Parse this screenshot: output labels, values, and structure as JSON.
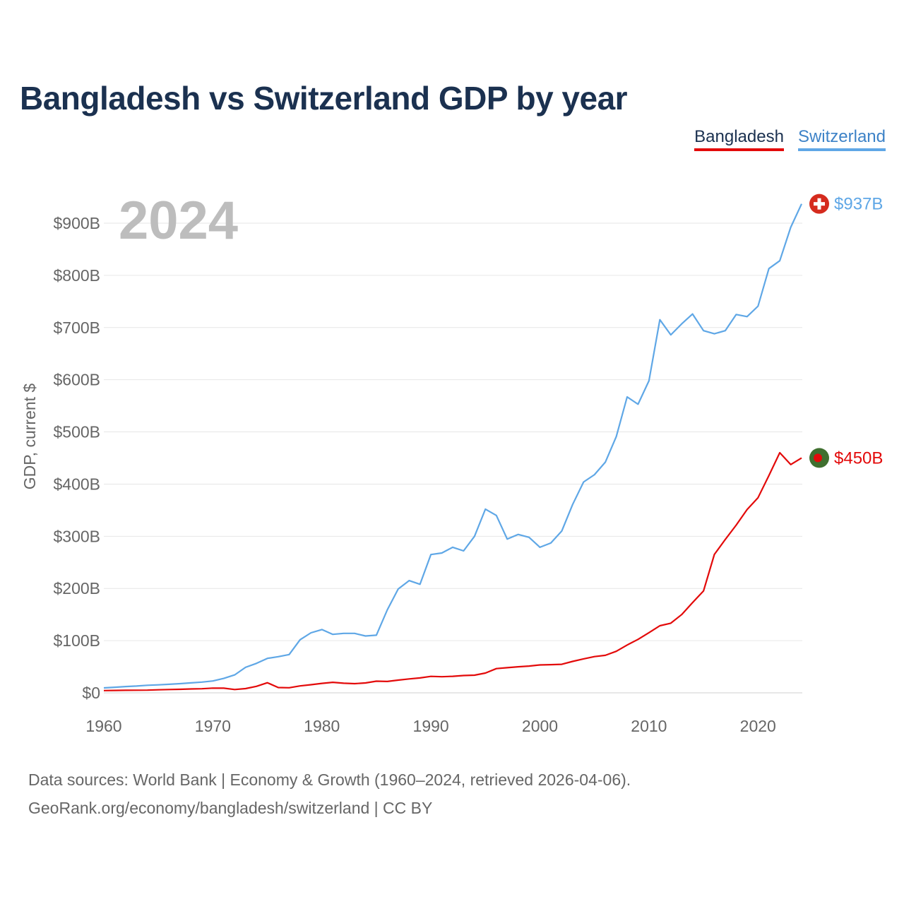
{
  "title": "Bangladesh vs Switzerland GDP by year",
  "legend": [
    {
      "label": "Bangladesh",
      "color": "#e30a0a"
    },
    {
      "label": "Switzerland",
      "color": "#5fa7e6"
    }
  ],
  "year_label": "2024",
  "footer": {
    "line1": "Data sources: World Bank | Economy & Growth (1960–2024, retrieved 2026-04-06).",
    "line2": "GeoRank.org/economy/bangladesh/switzerland | CC BY"
  },
  "chart_data": {
    "type": "line",
    "title": "Bangladesh vs Switzerland GDP by year",
    "xlabel": "",
    "ylabel": "GDP, current $",
    "xlim": [
      1960,
      2024
    ],
    "ylim": [
      0,
      900
    ],
    "y_unit": "billions of current US$",
    "x_ticks": [
      1960,
      1970,
      1980,
      1990,
      2000,
      2010,
      2020
    ],
    "x_tick_labels": [
      "1960",
      "1970",
      "1980",
      "1990",
      "2000",
      "2010",
      "2020"
    ],
    "y_ticks": [
      0,
      100,
      200,
      300,
      400,
      500,
      600,
      700,
      800,
      900
    ],
    "y_tick_labels": [
      "$0",
      "$100B",
      "$200B",
      "$300B",
      "$400B",
      "$500B",
      "$600B",
      "$700B",
      "$800B",
      "$900B"
    ],
    "grid": true,
    "legend_position": "top-right",
    "x": [
      1960,
      1961,
      1962,
      1963,
      1964,
      1965,
      1966,
      1967,
      1968,
      1969,
      1970,
      1971,
      1972,
      1973,
      1974,
      1975,
      1976,
      1977,
      1978,
      1979,
      1980,
      1981,
      1982,
      1983,
      1984,
      1985,
      1986,
      1987,
      1988,
      1989,
      1990,
      1991,
      1992,
      1993,
      1994,
      1995,
      1996,
      1997,
      1998,
      1999,
      2000,
      2001,
      2002,
      2003,
      2004,
      2005,
      2006,
      2007,
      2008,
      2009,
      2010,
      2011,
      2012,
      2013,
      2014,
      2015,
      2016,
      2017,
      2018,
      2019,
      2020,
      2021,
      2022,
      2023,
      2024
    ],
    "series": [
      {
        "name": "Bangladesh",
        "color": "#e30a0a",
        "end_label": "$450B",
        "values": [
          4.3,
          4.6,
          4.9,
          5.0,
          5.2,
          5.8,
          6.3,
          6.8,
          7.5,
          7.8,
          9.1,
          9.0,
          6.3,
          8.1,
          12.5,
          19.4,
          10.1,
          9.7,
          13.3,
          15.6,
          18.1,
          20.2,
          18.4,
          17.6,
          19.0,
          22.3,
          21.8,
          24.3,
          26.6,
          28.6,
          31.6,
          30.9,
          31.7,
          33.2,
          33.8,
          37.9,
          46.4,
          48.2,
          50.0,
          51.3,
          53.4,
          54.0,
          54.7,
          60.2,
          65.1,
          69.4,
          71.8,
          79.6,
          91.6,
          102.5,
          115.3,
          128.6,
          133.4,
          150.0,
          172.9,
          195.1,
          265.2,
          293.8,
          321.4,
          351.2,
          374.0,
          416.3,
          460.2,
          437.4,
          450.1
        ]
      },
      {
        "name": "Switzerland",
        "color": "#5fa7e6",
        "end_label": "$937B",
        "values": [
          9.5,
          10.7,
          12.0,
          13.0,
          14.5,
          15.3,
          16.4,
          17.6,
          19.1,
          20.6,
          22.7,
          27.6,
          34.4,
          48.8,
          56.4,
          66.1,
          69.3,
          73.4,
          101.8,
          115.1,
          121.2,
          112.0,
          114.0,
          113.9,
          109.0,
          110.5,
          159.0,
          199.0,
          215.0,
          208.0,
          265.0,
          268.0,
          279.0,
          272.0,
          300.0,
          352.0,
          340.0,
          294.6,
          303.6,
          298.0,
          279.0,
          287.0,
          310.0,
          361.0,
          404.0,
          418.0,
          442.0,
          491.0,
          567.0,
          553.0,
          598.0,
          715.0,
          686.0,
          707.0,
          726.0,
          694.0,
          688.0,
          694.0,
          725.0,
          721.0,
          741.0,
          813.0,
          828.0,
          892.0,
          937.0
        ]
      }
    ]
  }
}
